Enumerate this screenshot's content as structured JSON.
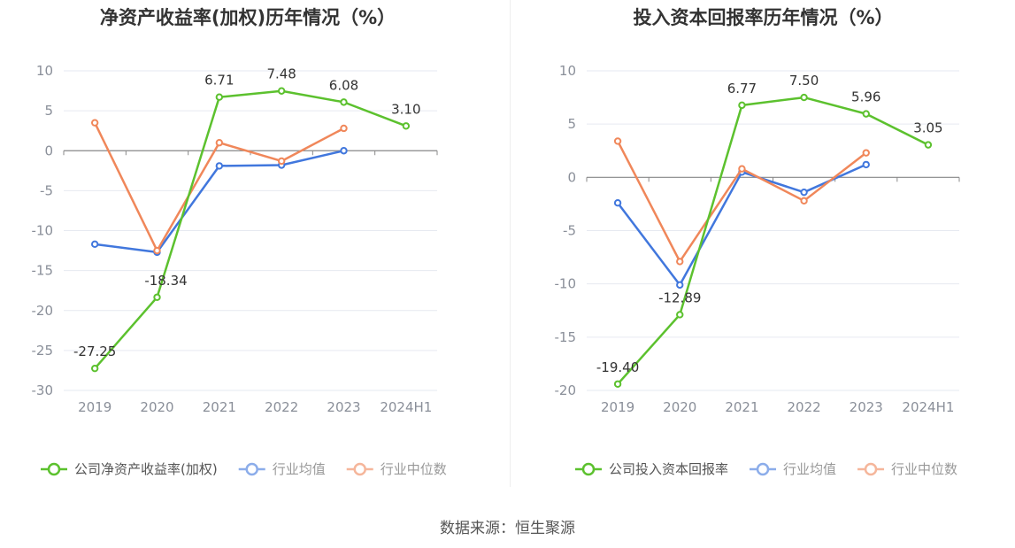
{
  "source_text": "数据来源：恒生聚源",
  "legend_labels": [
    "行业均值",
    "行业中位数"
  ],
  "colors": {
    "company": "#5cc12e",
    "avg": "#4177dd",
    "median": "#f0875a",
    "grid": "#e6e9f0",
    "axis": "#888888"
  },
  "chart_data": [
    {
      "type": "line",
      "title": "净资产收益率(加权)历年情况（%）",
      "categories": [
        "2019",
        "2020",
        "2021",
        "2022",
        "2023",
        "2024H1"
      ],
      "ylim": [
        -30,
        10
      ],
      "yticks": [
        10,
        5,
        0,
        -5,
        -10,
        -15,
        -20,
        -25,
        -30
      ],
      "grid": true,
      "legend": "bottom",
      "series": [
        {
          "name": "公司净资产收益率(加权)",
          "key": "company",
          "values": [
            -27.25,
            -18.34,
            6.71,
            7.48,
            6.08,
            3.1
          ],
          "labels": [
            "-27.25",
            "-18.34",
            "6.71",
            "7.48",
            "6.08",
            "3.10"
          ]
        },
        {
          "name": "行业均值",
          "key": "avg",
          "values": [
            -11.7,
            -12.7,
            -1.9,
            -1.8,
            0.0,
            null
          ]
        },
        {
          "name": "行业中位数",
          "key": "median",
          "values": [
            3.5,
            -12.5,
            1.0,
            -1.3,
            2.8,
            null
          ]
        }
      ]
    },
    {
      "type": "line",
      "title": "投入资本回报率历年情况（%）",
      "categories": [
        "2019",
        "2020",
        "2021",
        "2022",
        "2023",
        "2024H1"
      ],
      "ylim": [
        -20,
        10
      ],
      "yticks": [
        10,
        5,
        0,
        -5,
        -10,
        -15,
        -20
      ],
      "grid": true,
      "legend": "bottom",
      "series": [
        {
          "name": "公司投入资本回报率",
          "key": "company",
          "values": [
            -19.4,
            -12.89,
            6.77,
            7.5,
            5.96,
            3.05
          ],
          "labels": [
            "-19.40",
            "-12.89",
            "6.77",
            "7.50",
            "5.96",
            "3.05"
          ]
        },
        {
          "name": "行业均值",
          "key": "avg",
          "values": [
            -2.4,
            -10.1,
            0.5,
            -1.4,
            1.2,
            null
          ]
        },
        {
          "name": "行业中位数",
          "key": "median",
          "values": [
            3.4,
            -7.9,
            0.8,
            -2.2,
            2.3,
            null
          ]
        }
      ]
    }
  ]
}
